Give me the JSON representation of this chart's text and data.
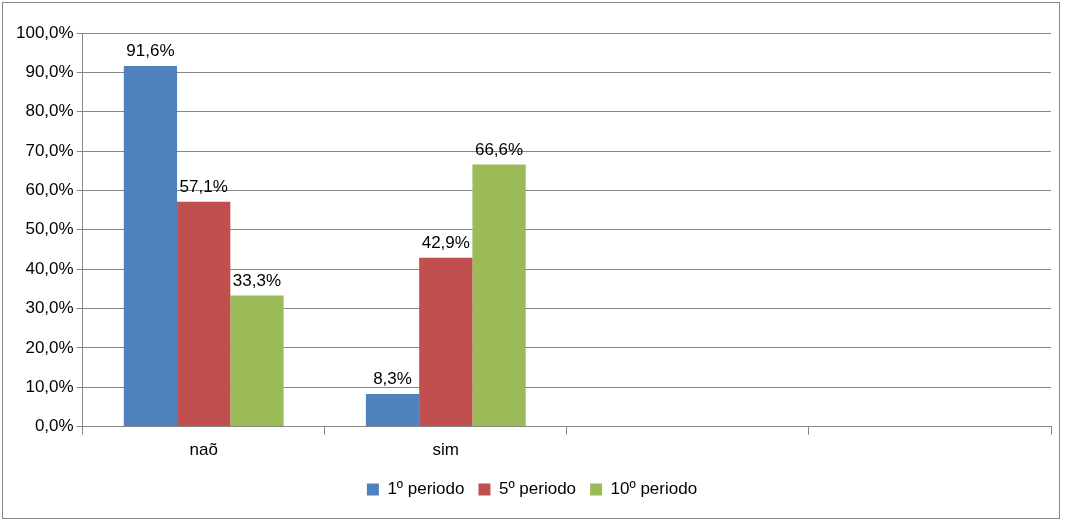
{
  "chart_data": {
    "type": "bar",
    "categories": [
      "naõ",
      "sim",
      null,
      null
    ],
    "series": [
      {
        "name": "1º periodo",
        "color": "#4f81bd",
        "values": [
          91.6,
          8.3,
          null,
          null
        ],
        "value_labels": [
          "91,6%",
          "8,3%",
          null,
          null
        ]
      },
      {
        "name": "5º periodo",
        "color": "#c0504d",
        "values": [
          57.1,
          42.9,
          null,
          null
        ],
        "value_labels": [
          "57,1%",
          "42,9%",
          null,
          null
        ]
      },
      {
        "name": "10º periodo",
        "color": "#9bbb59",
        "values": [
          33.3,
          66.6,
          null,
          null
        ],
        "value_labels": [
          "33,3%",
          "66,6%",
          null,
          null
        ]
      }
    ],
    "ylim": [
      0,
      100
    ],
    "yticks": [
      {
        "value": 0,
        "label": "0,0%"
      },
      {
        "value": 10,
        "label": "10,0%"
      },
      {
        "value": 20,
        "label": "20,0%"
      },
      {
        "value": 30,
        "label": "30,0%"
      },
      {
        "value": 40,
        "label": "40,0%"
      },
      {
        "value": 50,
        "label": "50,0%"
      },
      {
        "value": 60,
        "label": "60,0%"
      },
      {
        "value": 70,
        "label": "70,0%"
      },
      {
        "value": 80,
        "label": "80,0%"
      },
      {
        "value": 90,
        "label": "90,0%"
      },
      {
        "value": 100,
        "label": "100,0%"
      }
    ],
    "grid": "y",
    "legend": "bottom"
  }
}
